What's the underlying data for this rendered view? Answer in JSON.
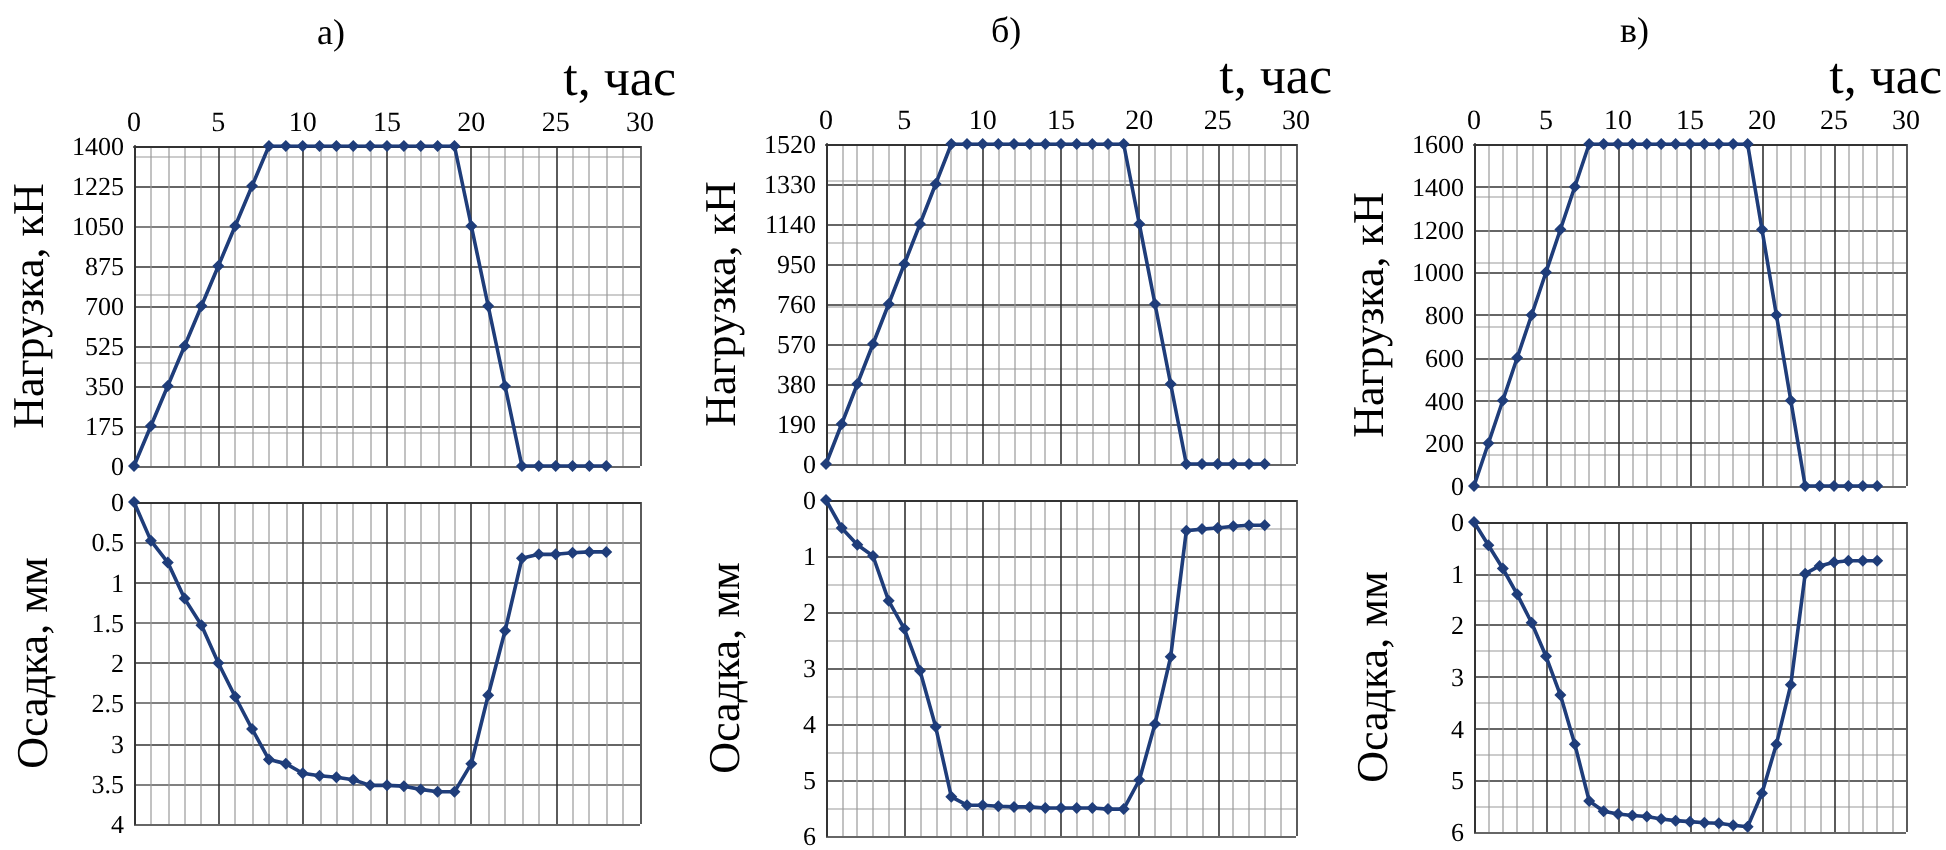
{
  "chart_data": [
    {
      "type": "line",
      "title": "а)",
      "xlabel": "t, час",
      "ylabel": "Нагрузка, кН",
      "xlim": [
        0,
        30
      ],
      "xticks": [
        0,
        5,
        10,
        15,
        20,
        25,
        30
      ],
      "ylim": [
        0,
        1400
      ],
      "yticks": [
        0,
        175,
        350,
        525,
        700,
        875,
        1050,
        1225,
        1400
      ],
      "grid": true,
      "marker": "diamond",
      "line_style": "solid",
      "series": [
        {
          "color": "#1f3d7a",
          "x": [
            0,
            1,
            2,
            3,
            4,
            5,
            6,
            7,
            8,
            9,
            10,
            11,
            12,
            13,
            14,
            15,
            16,
            17,
            18,
            19,
            20,
            21,
            22,
            23,
            24,
            25,
            26,
            27,
            28
          ],
          "values": [
            0,
            175,
            350,
            525,
            700,
            875,
            1050,
            1225,
            1400,
            1400,
            1400,
            1400,
            1400,
            1400,
            1400,
            1400,
            1400,
            1400,
            1400,
            1400,
            1050,
            700,
            350,
            0,
            0,
            0,
            0,
            0,
            0
          ]
        }
      ]
    },
    {
      "type": "line",
      "title": "б)",
      "xlabel": "t, час",
      "ylabel": "Нагрузка, кН",
      "xlim": [
        0,
        30
      ],
      "xticks": [
        0,
        5,
        10,
        15,
        20,
        25,
        30
      ],
      "ylim": [
        0,
        1520
      ],
      "yticks": [
        0,
        190,
        380,
        570,
        760,
        950,
        1140,
        1330,
        1520
      ],
      "grid": true,
      "marker": "diamond",
      "line_style": "solid",
      "series": [
        {
          "color": "#1f3d7a",
          "x": [
            0,
            1,
            2,
            3,
            4,
            5,
            6,
            7,
            8,
            9,
            10,
            11,
            12,
            13,
            14,
            15,
            16,
            17,
            18,
            19,
            20,
            21,
            22,
            23,
            24,
            25,
            26,
            27,
            28
          ],
          "values": [
            0,
            190,
            380,
            570,
            760,
            950,
            1140,
            1330,
            1520,
            1520,
            1520,
            1520,
            1520,
            1520,
            1520,
            1520,
            1520,
            1520,
            1520,
            1520,
            1140,
            760,
            380,
            0,
            0,
            0,
            0,
            0,
            0
          ]
        }
      ]
    },
    {
      "type": "line",
      "title": "в)",
      "xlabel": "t, час",
      "ylabel": "Нагрузка, кН",
      "xlim": [
        0,
        30
      ],
      "xticks": [
        0,
        5,
        10,
        15,
        20,
        25,
        30
      ],
      "ylim": [
        0,
        1600
      ],
      "yticks": [
        0,
        200,
        400,
        600,
        800,
        1000,
        1200,
        1400,
        1600
      ],
      "grid": true,
      "marker": "diamond",
      "line_style": "solid",
      "series": [
        {
          "color": "#1f3d7a",
          "x": [
            0,
            1,
            2,
            3,
            4,
            5,
            6,
            7,
            8,
            9,
            10,
            11,
            12,
            13,
            14,
            15,
            16,
            17,
            18,
            19,
            20,
            21,
            22,
            23,
            24,
            25,
            26,
            27,
            28
          ],
          "values": [
            0,
            200,
            400,
            600,
            800,
            1000,
            1200,
            1400,
            1600,
            1600,
            1600,
            1600,
            1600,
            1600,
            1600,
            1600,
            1600,
            1600,
            1600,
            1600,
            1200,
            800,
            400,
            0,
            0,
            0,
            0,
            0,
            0
          ]
        }
      ]
    },
    {
      "type": "line",
      "ylabel": "Осадка, мм",
      "xlim": [
        0,
        30
      ],
      "xticks": [
        0,
        5,
        10,
        15,
        20,
        25,
        30
      ],
      "ylim": [
        4,
        0
      ],
      "yticks": [
        0,
        0.5,
        1,
        1.5,
        2,
        2.5,
        3,
        3.5,
        4
      ],
      "tick_labels": "y",
      "grid": true,
      "marker": "diamond",
      "line_style": "solid",
      "series": [
        {
          "color": "#1f3d7a",
          "x": [
            0,
            1,
            2,
            3,
            4,
            5,
            6,
            7,
            8,
            9,
            10,
            11,
            12,
            13,
            14,
            15,
            16,
            17,
            18,
            19,
            20,
            21,
            22,
            23,
            24,
            25,
            26,
            27,
            28
          ],
          "values": [
            0,
            0.48,
            0.75,
            1.2,
            1.53,
            2.0,
            2.42,
            2.82,
            3.2,
            3.25,
            3.37,
            3.4,
            3.42,
            3.45,
            3.52,
            3.52,
            3.53,
            3.57,
            3.6,
            3.6,
            3.25,
            2.4,
            1.6,
            0.7,
            0.65,
            0.65,
            0.63,
            0.62,
            0.62
          ]
        }
      ]
    },
    {
      "type": "line",
      "ylabel": "Осадка, мм",
      "xlim": [
        0,
        30
      ],
      "xticks": [
        0,
        5,
        10,
        15,
        20,
        25,
        30
      ],
      "ylim": [
        6,
        0
      ],
      "yticks": [
        0,
        1,
        2,
        3,
        4,
        5,
        6
      ],
      "tick_labels": "y",
      "grid": true,
      "marker": "diamond",
      "line_style": "solid",
      "series": [
        {
          "color": "#1f3d7a",
          "x": [
            0,
            1,
            2,
            3,
            4,
            5,
            6,
            7,
            8,
            9,
            10,
            11,
            12,
            13,
            14,
            15,
            16,
            17,
            18,
            19,
            20,
            21,
            22,
            23,
            24,
            25,
            26,
            27,
            28
          ],
          "values": [
            0,
            0.5,
            0.8,
            1.0,
            1.8,
            2.3,
            3.05,
            4.05,
            5.3,
            5.45,
            5.45,
            5.47,
            5.48,
            5.48,
            5.5,
            5.5,
            5.5,
            5.5,
            5.52,
            5.52,
            5.0,
            4.0,
            2.8,
            0.55,
            0.52,
            0.5,
            0.47,
            0.45,
            0.45
          ]
        }
      ]
    },
    {
      "type": "line",
      "ylabel": "Осадка, мм",
      "xlim": [
        0,
        30
      ],
      "xticks": [
        0,
        5,
        10,
        15,
        20,
        25,
        30
      ],
      "ylim": [
        6,
        0
      ],
      "yticks": [
        0,
        1,
        2,
        3,
        4,
        5,
        6
      ],
      "tick_labels": "y",
      "grid": true,
      "marker": "diamond",
      "line_style": "solid",
      "series": [
        {
          "color": "#1f3d7a",
          "x": [
            0,
            1,
            2,
            3,
            4,
            5,
            6,
            7,
            8,
            9,
            10,
            11,
            12,
            13,
            14,
            15,
            16,
            17,
            18,
            19,
            20,
            21,
            22,
            23,
            24,
            25,
            26,
            27,
            28
          ],
          "values": [
            0,
            0.45,
            0.9,
            1.4,
            1.95,
            2.6,
            3.35,
            4.3,
            5.4,
            5.6,
            5.65,
            5.68,
            5.7,
            5.75,
            5.78,
            5.8,
            5.82,
            5.83,
            5.87,
            5.9,
            5.25,
            4.3,
            3.15,
            1.0,
            0.85,
            0.78,
            0.75,
            0.75,
            0.75
          ]
        }
      ]
    }
  ]
}
